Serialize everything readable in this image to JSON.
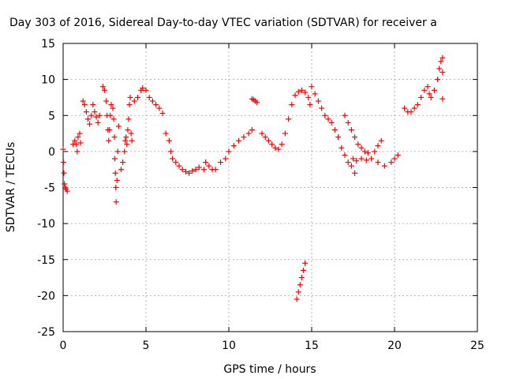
{
  "chart_data": {
    "type": "scatter",
    "title": "Day 303 of 2016, Sidereal Day-to-day VTEC variation (SDTVAR) for receiver a",
    "xlabel": "GPS time / hours",
    "ylabel": "SDTVAR / TECUs",
    "xlim": [
      0,
      25
    ],
    "ylim": [
      -25,
      15
    ],
    "xticks": [
      0,
      5,
      10,
      15,
      20,
      25
    ],
    "yticks": [
      -25,
      -20,
      -15,
      -10,
      -5,
      0,
      5,
      10,
      15
    ],
    "grid": true,
    "marker": "plus",
    "color": "#ff0000",
    "series": [
      {
        "points": [
          [
            0.0,
            0.3
          ],
          [
            0.02,
            -1.5
          ],
          [
            0.05,
            -3.0
          ],
          [
            0.08,
            -4.5
          ],
          [
            0.12,
            -5.0
          ],
          [
            0.18,
            -5.2
          ],
          [
            0.25,
            -5.5
          ],
          [
            0.6,
            1.0
          ],
          [
            0.7,
            1.5
          ],
          [
            0.8,
            1.0
          ],
          [
            0.85,
            0.0
          ],
          [
            0.9,
            2.0
          ],
          [
            1.0,
            2.5
          ],
          [
            1.05,
            1.2
          ],
          [
            1.2,
            7.0
          ],
          [
            1.3,
            6.5
          ],
          [
            1.4,
            5.5
          ],
          [
            1.5,
            4.5
          ],
          [
            1.6,
            3.8
          ],
          [
            1.7,
            5.0
          ],
          [
            1.8,
            6.5
          ],
          [
            1.9,
            5.5
          ],
          [
            2.0,
            4.8
          ],
          [
            2.1,
            4.0
          ],
          [
            2.2,
            5.0
          ],
          [
            2.4,
            9.0
          ],
          [
            2.5,
            8.5
          ],
          [
            2.6,
            7.0
          ],
          [
            2.65,
            5.0
          ],
          [
            2.7,
            3.0
          ],
          [
            2.75,
            1.5
          ],
          [
            2.8,
            3.0
          ],
          [
            2.85,
            5.0
          ],
          [
            2.9,
            6.5
          ],
          [
            3.0,
            6.0
          ],
          [
            3.05,
            4.5
          ],
          [
            3.1,
            2.0
          ],
          [
            3.12,
            -1.0
          ],
          [
            3.15,
            -3.0
          ],
          [
            3.18,
            -5.0
          ],
          [
            3.2,
            -7.0
          ],
          [
            3.25,
            -4.0
          ],
          [
            3.3,
            0.0
          ],
          [
            3.35,
            3.5
          ],
          [
            3.5,
            -2.5
          ],
          [
            3.6,
            -1.5
          ],
          [
            3.7,
            0.0
          ],
          [
            3.75,
            1.5
          ],
          [
            3.8,
            2.0
          ],
          [
            3.85,
            1.0
          ],
          [
            3.9,
            3.0
          ],
          [
            3.95,
            4.5
          ],
          [
            4.0,
            6.5
          ],
          [
            4.05,
            7.5
          ],
          [
            4.1,
            2.5
          ],
          [
            4.15,
            1.5
          ],
          [
            4.3,
            7.0
          ],
          [
            4.5,
            7.5
          ],
          [
            4.7,
            8.5
          ],
          [
            4.8,
            8.8
          ],
          [
            5.0,
            8.5
          ],
          [
            5.2,
            7.5
          ],
          [
            5.4,
            7.0
          ],
          [
            5.6,
            6.5
          ],
          [
            5.8,
            6.0
          ],
          [
            6.0,
            5.3
          ],
          [
            6.2,
            2.5
          ],
          [
            6.4,
            1.5
          ],
          [
            6.5,
            0.0
          ],
          [
            6.6,
            -1.0
          ],
          [
            6.8,
            -1.5
          ],
          [
            7.0,
            -2.0
          ],
          [
            7.2,
            -2.5
          ],
          [
            7.4,
            -2.8
          ],
          [
            7.6,
            -3.0
          ],
          [
            7.8,
            -2.7
          ],
          [
            8.0,
            -2.5
          ],
          [
            8.2,
            -2.2
          ],
          [
            8.5,
            -2.5
          ],
          [
            8.6,
            -1.5
          ],
          [
            8.8,
            -2.0
          ],
          [
            9.0,
            -2.5
          ],
          [
            9.2,
            -2.5
          ],
          [
            9.5,
            -1.5
          ],
          [
            9.8,
            -1.0
          ],
          [
            10.0,
            0.0
          ],
          [
            10.3,
            0.8
          ],
          [
            10.6,
            1.5
          ],
          [
            10.9,
            2.0
          ],
          [
            11.2,
            2.5
          ],
          [
            11.4,
            3.0
          ],
          [
            11.4,
            7.3
          ],
          [
            11.5,
            7.2
          ],
          [
            11.6,
            7.0
          ],
          [
            11.7,
            6.8
          ],
          [
            12.0,
            2.5
          ],
          [
            12.2,
            2.0
          ],
          [
            12.4,
            1.5
          ],
          [
            12.6,
            1.0
          ],
          [
            12.8,
            0.5
          ],
          [
            13.0,
            0.3
          ],
          [
            13.2,
            1.0
          ],
          [
            13.4,
            2.5
          ],
          [
            13.6,
            4.5
          ],
          [
            13.8,
            6.5
          ],
          [
            14.0,
            7.8
          ],
          [
            14.2,
            8.3
          ],
          [
            14.4,
            8.5
          ],
          [
            14.6,
            8.2
          ],
          [
            14.8,
            7.5
          ],
          [
            14.9,
            6.5
          ],
          [
            14.1,
            -20.5
          ],
          [
            14.2,
            -19.5
          ],
          [
            14.3,
            -18.5
          ],
          [
            14.4,
            -17.5
          ],
          [
            14.5,
            -16.5
          ],
          [
            14.6,
            -15.5
          ],
          [
            15.0,
            9.0
          ],
          [
            15.2,
            8.0
          ],
          [
            15.4,
            7.0
          ],
          [
            15.6,
            6.0
          ],
          [
            15.8,
            5.0
          ],
          [
            16.0,
            4.5
          ],
          [
            16.2,
            4.0
          ],
          [
            16.4,
            3.0
          ],
          [
            16.6,
            2.0
          ],
          [
            16.8,
            0.5
          ],
          [
            17.0,
            -0.5
          ],
          [
            17.2,
            -1.5
          ],
          [
            17.4,
            -2.0
          ],
          [
            17.6,
            -3.0
          ],
          [
            17.0,
            5.0
          ],
          [
            17.2,
            4.0
          ],
          [
            17.4,
            3.0
          ],
          [
            17.6,
            2.0
          ],
          [
            17.8,
            1.0
          ],
          [
            18.0,
            0.5
          ],
          [
            18.2,
            0.0
          ],
          [
            18.4,
            -0.2
          ],
          [
            17.5,
            -1.0
          ],
          [
            17.7,
            -1.3
          ],
          [
            18.0,
            -1.0
          ],
          [
            18.3,
            -1.2
          ],
          [
            18.6,
            -1.0
          ],
          [
            19.0,
            -1.5
          ],
          [
            19.4,
            -2.0
          ],
          [
            19.8,
            -1.5
          ],
          [
            20.0,
            -1.0
          ],
          [
            20.2,
            -0.5
          ],
          [
            18.8,
            0.0
          ],
          [
            19.0,
            0.8
          ],
          [
            19.2,
            1.5
          ],
          [
            20.6,
            6.0
          ],
          [
            20.8,
            5.5
          ],
          [
            21.0,
            5.5
          ],
          [
            21.2,
            6.0
          ],
          [
            21.4,
            6.5
          ],
          [
            21.6,
            7.5
          ],
          [
            21.8,
            8.5
          ],
          [
            22.0,
            9.0
          ],
          [
            22.1,
            8.0
          ],
          [
            22.2,
            7.5
          ],
          [
            22.4,
            8.5
          ],
          [
            22.6,
            10.0
          ],
          [
            22.7,
            11.5
          ],
          [
            22.8,
            12.5
          ],
          [
            22.9,
            13.0
          ],
          [
            22.9,
            11.0
          ],
          [
            22.9,
            7.3
          ]
        ]
      }
    ]
  }
}
